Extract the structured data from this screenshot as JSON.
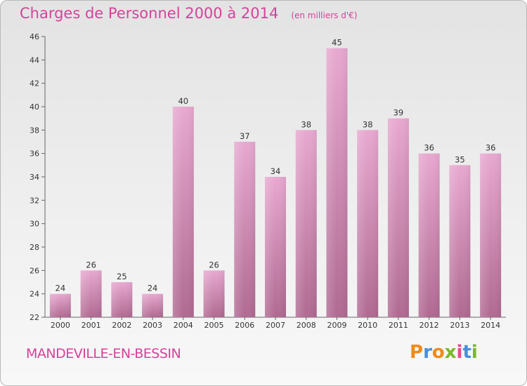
{
  "header": {
    "title": "Charges de Personnel 2000 à 2014",
    "unit": "(en milliers d'€)"
  },
  "footer": {
    "commune": "MANDEVILLE-EN-BESSIN",
    "logo_letters": [
      "P",
      "r",
      "o",
      "x",
      "i",
      "t",
      "i"
    ],
    "logo_colors": [
      "#f08a1c",
      "#4a8fd8",
      "#f08a1c",
      "#7ab828",
      "#e84a8a",
      "#4a8fd8",
      "#7ab828"
    ]
  },
  "chart_data": {
    "type": "bar",
    "title": "Charges de Personnel 2000 à 2014",
    "subtitle": "(en milliers d'€)",
    "categories": [
      "2000",
      "2001",
      "2002",
      "2003",
      "2004",
      "2005",
      "2006",
      "2007",
      "2008",
      "2009",
      "2010",
      "2011",
      "2012",
      "2013",
      "2014"
    ],
    "values": [
      24,
      26,
      25,
      24,
      40,
      26,
      37,
      34,
      38,
      45,
      38,
      39,
      36,
      35,
      36
    ],
    "ylim": [
      22,
      46
    ],
    "yticks": [
      22,
      24,
      26,
      28,
      30,
      32,
      34,
      36,
      38,
      40,
      42,
      44,
      46
    ],
    "grid": false,
    "data_labels": true,
    "colors": {
      "title": "#d4439a",
      "bar_top": "#e8a8d0",
      "bar_bottom": "#b06a92",
      "axis": "#666666"
    }
  }
}
